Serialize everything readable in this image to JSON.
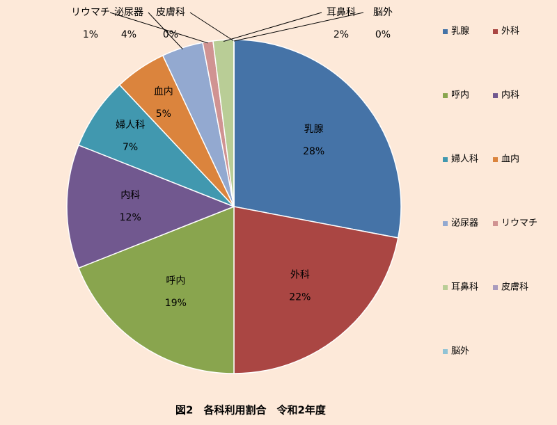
{
  "chart_data": {
    "type": "pie",
    "title": "図2　各科利用割合　令和2年度",
    "categories": [
      "乳腺",
      "外科",
      "呼内",
      "内科",
      "婦人科",
      "血内",
      "泌尿器",
      "リウマチ",
      "耳鼻科",
      "皮膚科",
      "脳外"
    ],
    "values": [
      28,
      22,
      19,
      12,
      7,
      5,
      4,
      1,
      2,
      0,
      0
    ],
    "value_labels": [
      "28%",
      "22%",
      "19%",
      "12%",
      "7%",
      "5%",
      "4%",
      "1%",
      "2%",
      "0%",
      "0%"
    ],
    "colors": [
      "#4573a7",
      "#aa4643",
      "#89a54e",
      "#71588f",
      "#4198af",
      "#db843d",
      "#93a9d0",
      "#d09392",
      "#b9cd96",
      "#a99bbd",
      "#91c3d5"
    ],
    "legend": "right"
  }
}
